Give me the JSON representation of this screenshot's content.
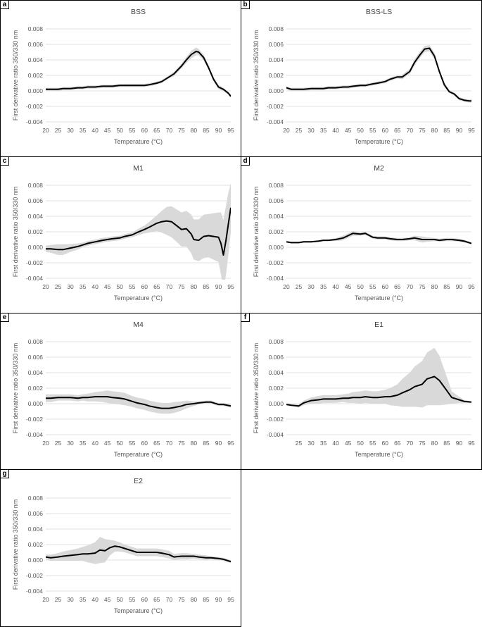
{
  "figure": {
    "panels": [
      {
        "key": "a",
        "letter": "a",
        "chart": 0
      },
      {
        "key": "b",
        "letter": "b",
        "chart": 1
      },
      {
        "key": "c",
        "letter": "c",
        "chart": 2
      },
      {
        "key": "d",
        "letter": "d",
        "chart": 3
      },
      {
        "key": "e",
        "letter": "e",
        "chart": 4
      },
      {
        "key": "f",
        "letter": "f",
        "chart": 5
      },
      {
        "key": "g",
        "letter": "g",
        "chart": 6
      }
    ]
  },
  "style": {
    "line_color": "#000000",
    "band_color": "#d9d9d9",
    "grid_color": "#d9d9d9",
    "text_color": "#595959"
  },
  "chart_data": [
    {
      "type": "line",
      "title": "BSS",
      "xlabel": "Temperature (°C)",
      "ylabel": "First derivative ratio 350/330 nm",
      "xlim": [
        20,
        95
      ],
      "ylim": [
        -0.004,
        0.008
      ],
      "grid": true,
      "x_ticks": [
        "20",
        "25",
        "30",
        "35",
        "40",
        "45",
        "50",
        "55",
        "60",
        "65",
        "70",
        "75",
        "80",
        "85",
        "90",
        "95"
      ],
      "y_ticks": [
        "0.008",
        "0.006",
        "0.004",
        "0.002",
        "0.000",
        "-0.002",
        "-0.004"
      ],
      "x": [
        20,
        22,
        25,
        27,
        30,
        33,
        35,
        37,
        40,
        43,
        45,
        47,
        50,
        52,
        55,
        57,
        60,
        62,
        65,
        67,
        70,
        72,
        75,
        77,
        79,
        81,
        82,
        84,
        86,
        88,
        90,
        92,
        94,
        95
      ],
      "mean": [
        0.0002,
        0.0002,
        0.0002,
        0.0003,
        0.0003,
        0.0004,
        0.0004,
        0.0005,
        0.0005,
        0.0006,
        0.0006,
        0.0006,
        0.0007,
        0.0007,
        0.0007,
        0.0007,
        0.0007,
        0.0008,
        0.001,
        0.0012,
        0.0018,
        0.0022,
        0.0032,
        0.004,
        0.0047,
        0.0051,
        0.005,
        0.0043,
        0.003,
        0.0015,
        0.0005,
        0.0002,
        -0.0003,
        -0.0007
      ],
      "band": [
        0.0002,
        0.0002,
        0.0002,
        0.0002,
        0.0002,
        0.0002,
        0.0002,
        0.0002,
        0.0002,
        0.0002,
        0.0002,
        0.0002,
        0.0002,
        0.0002,
        0.0002,
        0.0002,
        0.0002,
        0.0002,
        0.0002,
        0.0002,
        0.0002,
        0.0003,
        0.0003,
        0.0004,
        0.0005,
        0.0005,
        0.0004,
        0.0004,
        0.0003,
        0.0003,
        0.0003,
        0.0002,
        0.0002,
        0.0002
      ]
    },
    {
      "type": "line",
      "title": "BSS-LS",
      "xlabel": "Temperature (°C)",
      "ylabel": "First derivative ratio 350/330 nm",
      "xlim": [
        20,
        95
      ],
      "ylim": [
        -0.004,
        0.008
      ],
      "grid": true,
      "x_ticks": [
        "20",
        "25",
        "30",
        "35",
        "40",
        "45",
        "50",
        "55",
        "60",
        "65",
        "70",
        "75",
        "80",
        "85",
        "90",
        "95"
      ],
      "y_ticks": [
        "0.008",
        "0.006",
        "0.004",
        "0.002",
        "0.000",
        "-0.002",
        "-0.004"
      ],
      "x": [
        20,
        22,
        25,
        27,
        30,
        33,
        35,
        37,
        40,
        43,
        45,
        47,
        50,
        52,
        55,
        57,
        60,
        62,
        65,
        67,
        70,
        72,
        74,
        76,
        78,
        80,
        82,
        84,
        86,
        88,
        90,
        92,
        94,
        95
      ],
      "mean": [
        0.0004,
        0.0002,
        0.0002,
        0.0002,
        0.0003,
        0.0003,
        0.0003,
        0.0004,
        0.0004,
        0.0005,
        0.0005,
        0.0006,
        0.0007,
        0.0007,
        0.0009,
        0.001,
        0.0012,
        0.0015,
        0.0018,
        0.0018,
        0.0025,
        0.0037,
        0.0046,
        0.0054,
        0.0055,
        0.0045,
        0.0025,
        0.0008,
        -0.0001,
        -0.0004,
        -0.001,
        -0.0012,
        -0.0013,
        -0.0013
      ],
      "band": [
        0.0002,
        0.0002,
        0.0002,
        0.0002,
        0.0002,
        0.0002,
        0.0002,
        0.0002,
        0.0002,
        0.0002,
        0.0002,
        0.0002,
        0.0002,
        0.0002,
        0.0002,
        0.0002,
        0.0002,
        0.0002,
        0.0002,
        0.0003,
        0.0003,
        0.0004,
        0.0004,
        0.0004,
        0.0004,
        0.0004,
        0.0003,
        0.0003,
        0.0002,
        0.0002,
        0.0002,
        0.0002,
        0.0002,
        0.0002
      ]
    },
    {
      "type": "line",
      "title": "M1",
      "xlabel": "Temperature (°C)",
      "ylabel": "First derivative ratio 350/330 nm",
      "xlim": [
        20,
        95
      ],
      "ylim": [
        -0.004,
        0.008
      ],
      "grid": true,
      "x_ticks": [
        "20",
        "25",
        "30",
        "35",
        "40",
        "45",
        "50",
        "55",
        "60",
        "65",
        "70",
        "75",
        "80",
        "85",
        "90",
        "95"
      ],
      "y_ticks": [
        "0.008",
        "0.006",
        "0.004",
        "0.002",
        "0.000",
        "-0.002",
        "-0.004"
      ],
      "x": [
        20,
        22,
        25,
        27,
        30,
        33,
        35,
        37,
        40,
        43,
        45,
        47,
        50,
        52,
        55,
        57,
        60,
        62,
        65,
        67,
        69,
        71,
        73,
        75,
        77,
        79,
        80,
        82,
        84,
        86,
        88,
        90,
        91,
        92,
        93,
        94,
        95
      ],
      "mean": [
        -0.0002,
        -0.0002,
        -0.0003,
        -0.0003,
        -0.0001,
        0.0001,
        0.0003,
        0.0005,
        0.0007,
        0.0009,
        0.001,
        0.0011,
        0.0012,
        0.0014,
        0.0016,
        0.0019,
        0.0023,
        0.0026,
        0.0031,
        0.0033,
        0.0034,
        0.0033,
        0.0028,
        0.0023,
        0.0024,
        0.0017,
        0.001,
        0.0009,
        0.0014,
        0.0015,
        0.0014,
        0.0013,
        0.0005,
        -0.001,
        0.0008,
        0.003,
        0.0051
      ],
      "band": [
        0.0004,
        0.0005,
        0.0007,
        0.0007,
        0.0005,
        0.0004,
        0.0003,
        0.0003,
        0.0003,
        0.0003,
        0.0003,
        0.0003,
        0.0003,
        0.0003,
        0.0003,
        0.0004,
        0.0005,
        0.0007,
        0.001,
        0.0014,
        0.0018,
        0.002,
        0.0021,
        0.0022,
        0.0023,
        0.0025,
        0.0026,
        0.0027,
        0.0028,
        0.0028,
        0.003,
        0.0032,
        0.004,
        0.0045,
        0.0045,
        0.004,
        0.0032
      ]
    },
    {
      "type": "line",
      "title": "M2",
      "xlabel": "Temperature (°C)",
      "ylabel": "First derivative ratio 350/330 nm",
      "xlim": [
        20,
        95
      ],
      "ylim": [
        -0.004,
        0.008
      ],
      "grid": true,
      "x_ticks": [
        "20",
        "25",
        "30",
        "35",
        "40",
        "45",
        "50",
        "55",
        "60",
        "65",
        "70",
        "75",
        "80",
        "85",
        "90",
        "95"
      ],
      "y_ticks": [
        "0.008",
        "0.006",
        "0.004",
        "0.002",
        "0.000",
        "-0.002",
        "-0.004"
      ],
      "x": [
        20,
        22,
        25,
        27,
        30,
        33,
        35,
        37,
        40,
        43,
        45,
        47,
        50,
        52,
        55,
        57,
        60,
        62,
        65,
        67,
        70,
        72,
        75,
        77,
        80,
        82,
        85,
        87,
        90,
        92,
        95
      ],
      "mean": [
        0.0007,
        0.0006,
        0.0006,
        0.0007,
        0.0007,
        0.0008,
        0.0009,
        0.0009,
        0.001,
        0.0012,
        0.0015,
        0.0018,
        0.0017,
        0.0018,
        0.0013,
        0.0012,
        0.0012,
        0.0011,
        0.001,
        0.001,
        0.0011,
        0.0012,
        0.001,
        0.001,
        0.001,
        0.0009,
        0.001,
        0.001,
        0.0009,
        0.0008,
        0.0005
      ],
      "band": [
        0.0001,
        0.0001,
        0.0001,
        0.0001,
        0.0001,
        0.0001,
        0.0001,
        0.0001,
        0.0002,
        0.0003,
        0.0003,
        0.0003,
        0.0002,
        0.0002,
        0.0002,
        0.0002,
        0.0002,
        0.0002,
        0.0002,
        0.0002,
        0.0002,
        0.0003,
        0.0004,
        0.0003,
        0.0002,
        0.0002,
        0.0002,
        0.0002,
        0.0002,
        0.0002,
        0.0001
      ]
    },
    {
      "type": "line",
      "title": "M4",
      "xlabel": "Temperature (°C)",
      "ylabel": "First derivative ratio 350/330 nm",
      "xlim": [
        20,
        95
      ],
      "ylim": [
        -0.004,
        0.008
      ],
      "grid": true,
      "x_ticks": [
        "20",
        "25",
        "30",
        "35",
        "40",
        "45",
        "50",
        "55",
        "60",
        "65",
        "70",
        "75",
        "80",
        "85",
        "90",
        "95"
      ],
      "y_ticks": [
        "0.008",
        "0.006",
        "0.004",
        "0.002",
        "0.000",
        "-0.002",
        "-0.004"
      ],
      "x": [
        20,
        22,
        25,
        27,
        30,
        33,
        35,
        37,
        40,
        43,
        45,
        47,
        50,
        52,
        55,
        57,
        60,
        62,
        65,
        67,
        70,
        72,
        75,
        77,
        80,
        82,
        85,
        87,
        90,
        92,
        95
      ],
      "mean": [
        0.0007,
        0.0007,
        0.0008,
        0.0008,
        0.0008,
        0.0007,
        0.0008,
        0.0008,
        0.0009,
        0.0009,
        0.0009,
        0.0008,
        0.0007,
        0.0006,
        0.0003,
        0.0001,
        -0.0001,
        -0.0003,
        -0.0005,
        -0.0006,
        -0.0006,
        -0.0005,
        -0.0003,
        -0.0001,
        0.0,
        0.0001,
        0.0002,
        0.0002,
        -0.0001,
        -0.0001,
        -0.0003
      ],
      "band": [
        0.0005,
        0.0005,
        0.0004,
        0.0004,
        0.0004,
        0.0004,
        0.0004,
        0.0005,
        0.0006,
        0.0007,
        0.0008,
        0.0008,
        0.0008,
        0.0008,
        0.0007,
        0.0007,
        0.0007,
        0.0007,
        0.0007,
        0.0007,
        0.0007,
        0.0007,
        0.0006,
        0.0005,
        0.0003,
        0.0002,
        0.0002,
        0.0002,
        0.0002,
        0.0002,
        0.0002
      ]
    },
    {
      "type": "line",
      "title": "E1",
      "xlabel": "Temperature (°C)",
      "ylabel": "First derivative ratio 350/330 nm",
      "xlim": [
        20,
        95
      ],
      "ylim": [
        -0.004,
        0.008
      ],
      "grid": true,
      "x_ticks": [
        "25",
        "30",
        "35",
        "40",
        "45",
        "50",
        "55",
        "60",
        "65",
        "70",
        "75",
        "80",
        "85",
        "90",
        "95"
      ],
      "y_ticks": [
        "0.008",
        "0.006",
        "0.004",
        "0.002",
        "0.000",
        "-0.002",
        "-0.004"
      ],
      "x": [
        20,
        22,
        25,
        27,
        30,
        33,
        35,
        37,
        40,
        43,
        45,
        47,
        50,
        52,
        55,
        57,
        60,
        62,
        65,
        67,
        70,
        72,
        75,
        77,
        80,
        82,
        85,
        87,
        90,
        92,
        95
      ],
      "mean": [
        -0.0001,
        -0.0002,
        -0.0003,
        0.0001,
        0.0004,
        0.0005,
        0.0006,
        0.0006,
        0.0006,
        0.0007,
        0.0007,
        0.0008,
        0.0008,
        0.0009,
        0.0008,
        0.0008,
        0.0009,
        0.0009,
        0.0011,
        0.0014,
        0.0018,
        0.0022,
        0.0025,
        0.0032,
        0.0035,
        0.003,
        0.0017,
        0.0008,
        0.0005,
        0.0003,
        0.0002
      ],
      "band": [
        0.0001,
        0.0001,
        0.0002,
        0.0003,
        0.0004,
        0.0005,
        0.0005,
        0.0005,
        0.0005,
        0.0005,
        0.0006,
        0.0007,
        0.0008,
        0.0008,
        0.0008,
        0.0008,
        0.0009,
        0.0011,
        0.0014,
        0.0018,
        0.0022,
        0.0026,
        0.003,
        0.0034,
        0.0037,
        0.0032,
        0.0018,
        0.0008,
        0.0004,
        0.0002,
        0.0001
      ]
    },
    {
      "type": "line",
      "title": "E2",
      "xlabel": "Temperature (°C)",
      "ylabel": "First derivative ratio  350/330 nm",
      "xlim": [
        20,
        95
      ],
      "ylim": [
        -0.004,
        0.008
      ],
      "grid": true,
      "x_ticks": [
        "20",
        "25",
        "30",
        "35",
        "40",
        "45",
        "50",
        "55",
        "60",
        "65",
        "70",
        "75",
        "80",
        "85",
        "90",
        "95"
      ],
      "y_ticks": [
        "0.008",
        "0.006",
        "0.004",
        "0.002",
        "0.000",
        "-0.002",
        "-0.004"
      ],
      "x": [
        20,
        22,
        25,
        27,
        30,
        33,
        35,
        37,
        40,
        42,
        44,
        46,
        48,
        50,
        52,
        55,
        57,
        60,
        62,
        65,
        67,
        70,
        72,
        75,
        77,
        80,
        82,
        85,
        87,
        90,
        92,
        95
      ],
      "mean": [
        0.0004,
        0.0003,
        0.0004,
        0.0005,
        0.0006,
        0.0007,
        0.0008,
        0.0008,
        0.0009,
        0.0013,
        0.0012,
        0.0016,
        0.0018,
        0.0017,
        0.0015,
        0.0012,
        0.001,
        0.001,
        0.001,
        0.001,
        0.0009,
        0.0007,
        0.0004,
        0.0005,
        0.0005,
        0.0005,
        0.0004,
        0.0003,
        0.0003,
        0.0002,
        0.0001,
        -0.0002
      ],
      "band": [
        0.0003,
        0.0004,
        0.0005,
        0.0006,
        0.0007,
        0.0008,
        0.0009,
        0.0011,
        0.0014,
        0.0017,
        0.0015,
        0.001,
        0.0007,
        0.0006,
        0.0005,
        0.0005,
        0.0005,
        0.0005,
        0.0005,
        0.0005,
        0.0005,
        0.0005,
        0.0004,
        0.0004,
        0.0004,
        0.0003,
        0.0003,
        0.0003,
        0.0002,
        0.0002,
        0.0002,
        0.0002
      ]
    }
  ]
}
